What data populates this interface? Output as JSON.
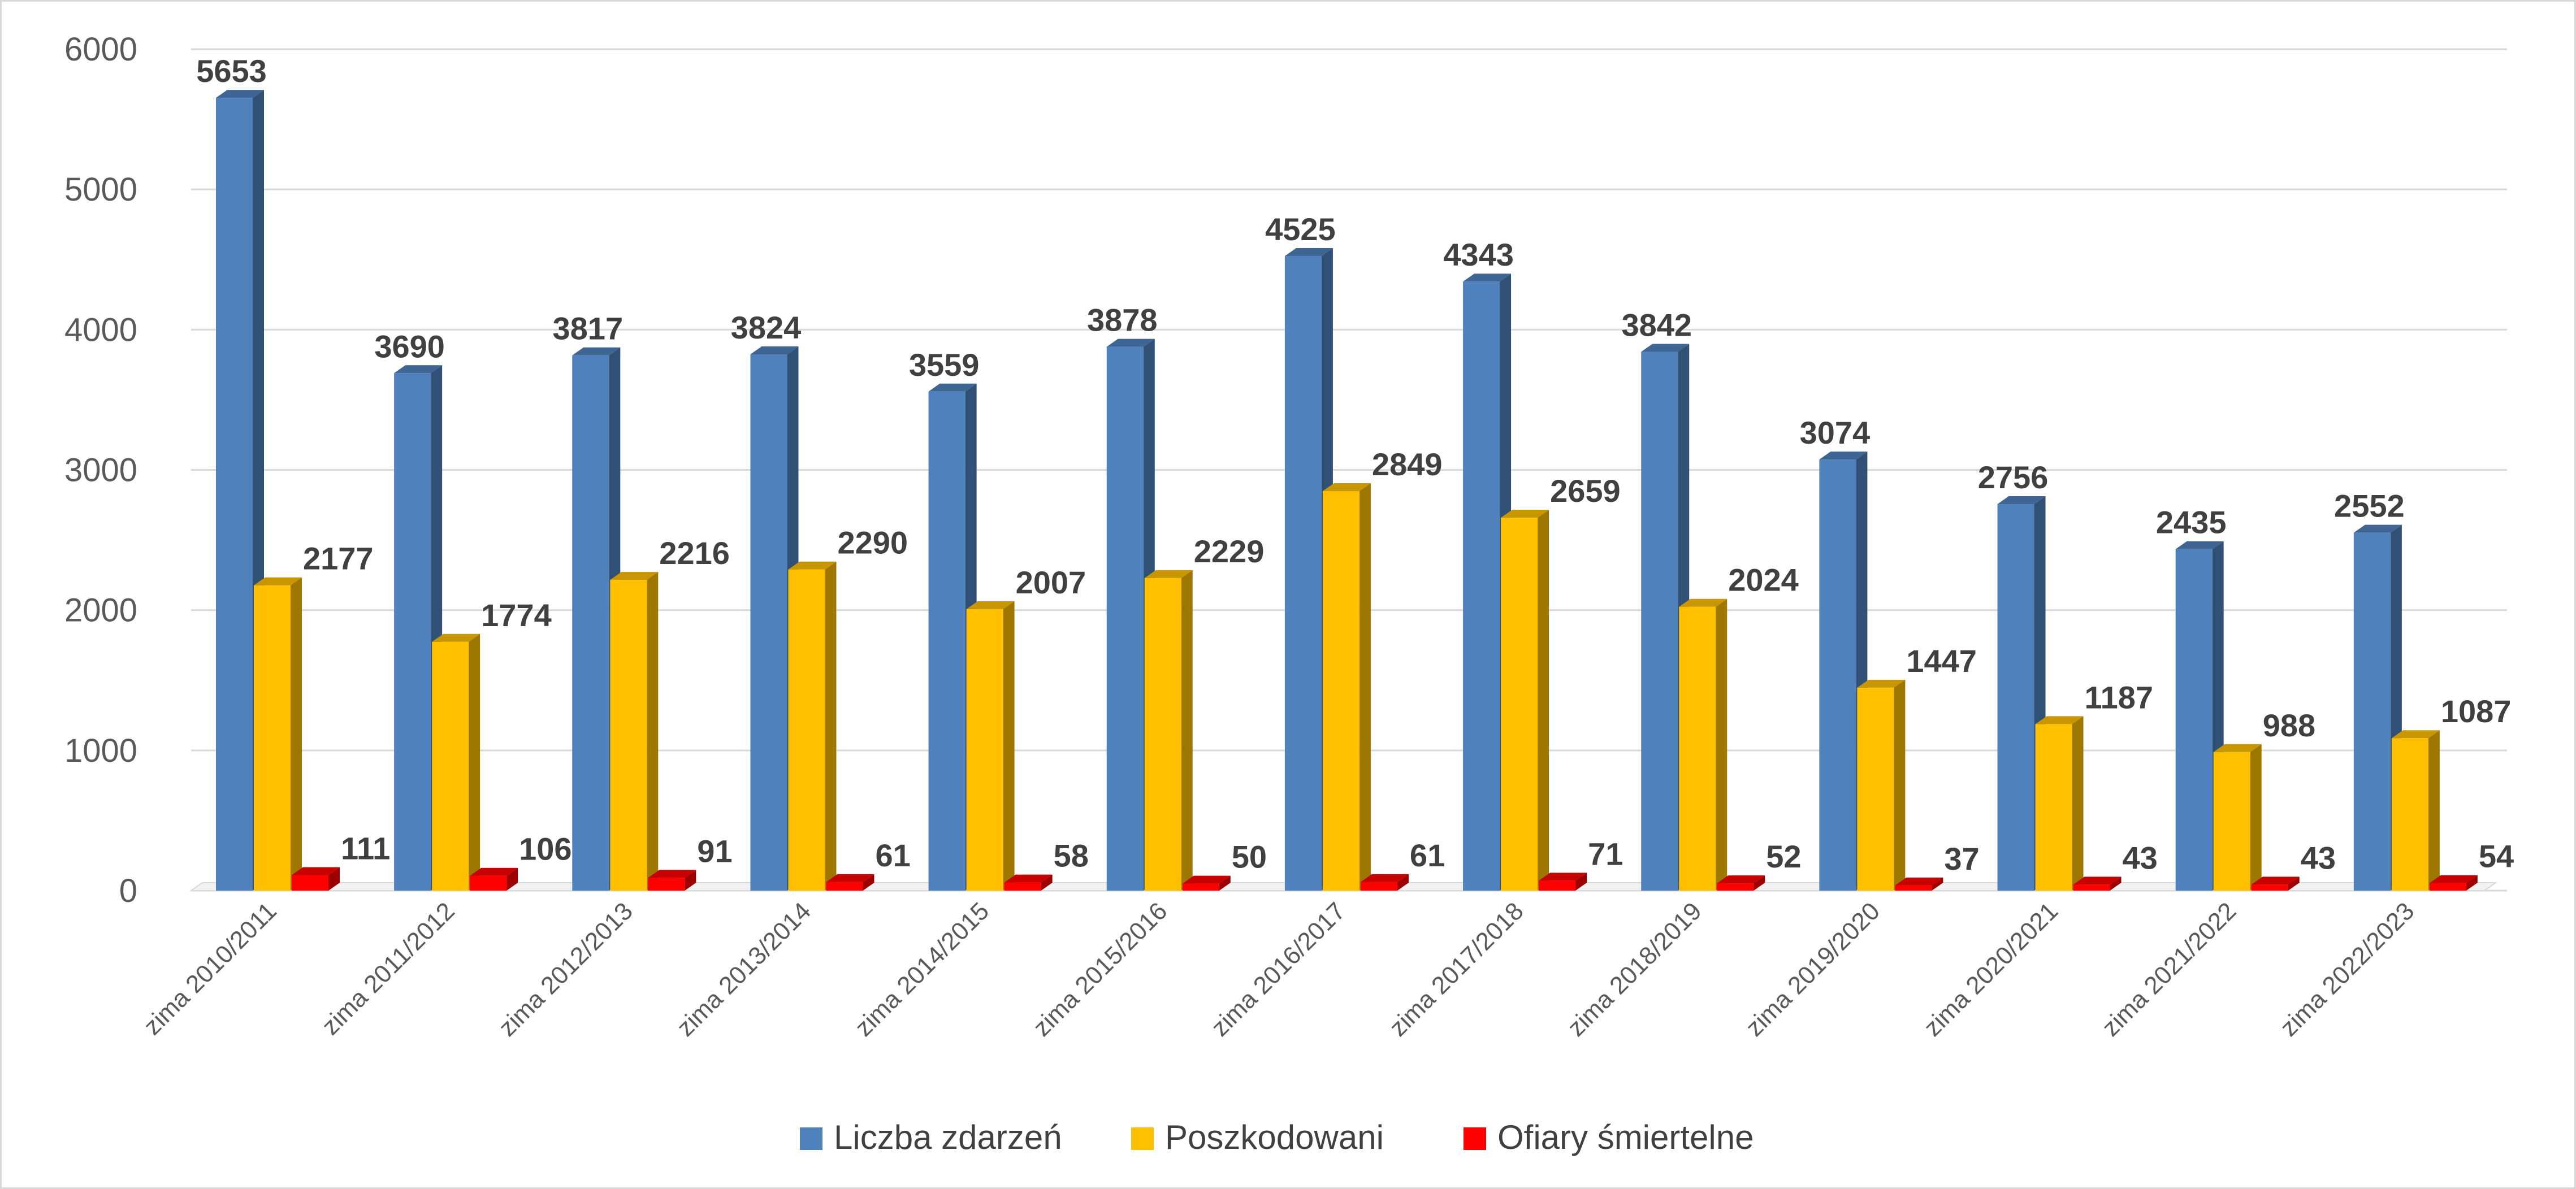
{
  "chart_data": {
    "type": "bar",
    "categories": [
      "zima 2010/2011",
      "zima 2011/2012",
      "zima 2012/2013",
      "zima 2013/2014",
      "zima 2014/2015",
      "zima 2015/2016",
      "zima 2016/2017",
      "zima 2017/2018",
      "zima 2018/2019",
      "zima 2019/2020",
      "zima 2020/2021",
      "zima 2021/2022",
      "zima 2022/2023"
    ],
    "series": [
      {
        "name": "Liczba zdarzeń",
        "color": "#4f81bd",
        "values": [
          5653,
          3690,
          3817,
          3824,
          3559,
          3878,
          4525,
          4343,
          3842,
          3074,
          2756,
          2435,
          2552
        ]
      },
      {
        "name": "Poszkodowani",
        "color": "#ffc000",
        "values": [
          2177,
          1774,
          2216,
          2290,
          2007,
          2229,
          2849,
          2659,
          2024,
          1447,
          1187,
          988,
          1087
        ]
      },
      {
        "name": "Ofiary śmiertelne",
        "color": "#ff0000",
        "values": [
          111,
          106,
          91,
          61,
          58,
          50,
          61,
          71,
          52,
          37,
          43,
          43,
          54
        ]
      }
    ],
    "yticks": [
      "0",
      "1000",
      "2000",
      "3000",
      "4000",
      "5000",
      "6000"
    ],
    "ylim": [
      0,
      6000
    ],
    "grid": true,
    "legend_position": "bottom",
    "style": "3d-clustered-column",
    "title": "",
    "xlabel": "",
    "ylabel": ""
  }
}
